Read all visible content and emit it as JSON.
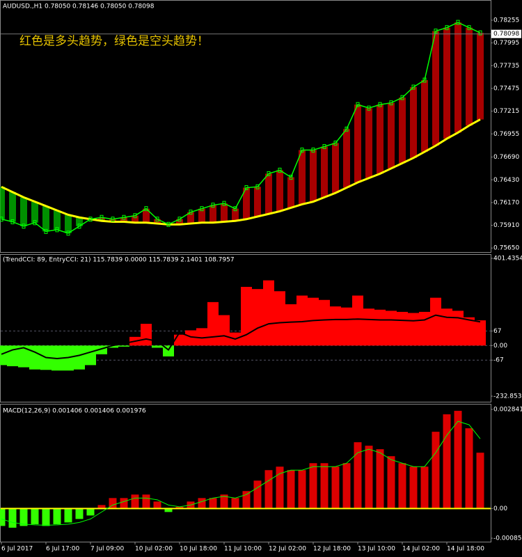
{
  "chart_data": [
    {
      "type": "line",
      "title": "AUDUSD.,H1  0.78050 0.78146 0.78050 0.78098",
      "annotation": "红色是多头趋势，绿色是空头趋势！",
      "categories": [
        "6 Jul 2017",
        null,
        null,
        null,
        "6 Jul 17:00",
        null,
        null,
        null,
        "7 Jul 09:00",
        null,
        null,
        null,
        "10 Jul 02:00",
        null,
        null,
        null,
        "10 Jul 18:00",
        null,
        null,
        null,
        "11 Jul 10:00",
        null,
        null,
        null,
        "12 Jul 02:00",
        null,
        null,
        null,
        "12 Jul 18:00",
        null,
        null,
        null,
        "13 Jul 10:00",
        null,
        null,
        null,
        "14 Jul 02:00",
        null,
        null,
        null,
        "14 Jul 18:00",
        null,
        null,
        null
      ],
      "series": [
        {
          "color": "#00ff00",
          "values": [
            0.7598,
            0.7595,
            0.759,
            0.7594,
            0.7584,
            0.7586,
            0.7582,
            0.759,
            0.7598,
            0.76,
            0.7598,
            0.76,
            0.7602,
            0.761,
            0.7598,
            0.7592,
            0.7598,
            0.7606,
            0.761,
            0.7614,
            0.7616,
            0.761,
            0.7634,
            0.7635,
            0.765,
            0.7654,
            0.7646,
            0.7677,
            0.7677,
            0.7681,
            0.7685,
            0.7701,
            0.7729,
            0.7725,
            0.7729,
            0.7731,
            0.7737,
            0.7749,
            0.7757,
            0.7813,
            0.7817,
            0.7823,
            0.7817,
            0.7811
          ]
        },
        {
          "color": "#ffff00",
          "values": [
            0.7635,
            0.7629,
            0.7623,
            0.7618,
            0.7613,
            0.7608,
            0.7603,
            0.76,
            0.7598,
            0.7596,
            0.7595,
            0.7595,
            0.7594,
            0.7594,
            0.7593,
            0.7592,
            0.7592,
            0.7593,
            0.7594,
            0.7594,
            0.7595,
            0.7596,
            0.7598,
            0.7601,
            0.7604,
            0.7607,
            0.7611,
            0.7615,
            0.7618,
            0.7623,
            0.7628,
            0.7634,
            0.764,
            0.7645,
            0.765,
            0.7656,
            0.7662,
            0.7668,
            0.7675,
            0.7682,
            0.769,
            0.7697,
            0.7705,
            0.7712
          ]
        }
      ],
      "up_color": "#e00000",
      "down_color": "#00c000",
      "last_price": 0.78098,
      "ylim": [
        0.7562,
        0.7847
      ],
      "yticks": [
        {
          "value": 0.78255,
          "label": "0.78255"
        },
        {
          "value": 0.77995,
          "label": "0.77995"
        },
        {
          "value": 0.77735,
          "label": "0.77735"
        },
        {
          "value": 0.77475,
          "label": "0.77475"
        },
        {
          "value": 0.77215,
          "label": "0.77215"
        },
        {
          "value": 0.76955,
          "label": "0.76955"
        },
        {
          "value": 0.7669,
          "label": "0.76690"
        },
        {
          "value": 0.7643,
          "label": "0.76430"
        },
        {
          "value": 0.7617,
          "label": "0.76170"
        },
        {
          "value": 0.7591,
          "label": "0.75910"
        },
        {
          "value": 0.7565,
          "label": "0.75650"
        }
      ]
    },
    {
      "type": "histogram",
      "title": "(TrendCCI: 89, EntryCCI: 21) 115.7839 0.0000 115.7839 2.1401 108.7957",
      "values": [
        -90,
        -95,
        -100,
        -110,
        -112,
        -115,
        -115,
        -110,
        -90,
        -40,
        -10,
        -5,
        40,
        100,
        -10,
        -50,
        50,
        70,
        80,
        200,
        140,
        60,
        270,
        260,
        300,
        250,
        190,
        230,
        220,
        210,
        180,
        175,
        230,
        170,
        165,
        160,
        155,
        150,
        155,
        220,
        170,
        160,
        130,
        116
      ],
      "up_color": "#ff0000",
      "down_color": "#33ff00",
      "line": {
        "color": "#000000",
        "values": [
          -40,
          -20,
          -10,
          -30,
          -55,
          -60,
          -55,
          -45,
          -30,
          -15,
          0,
          10,
          20,
          30,
          20,
          -20,
          60,
          40,
          35,
          40,
          45,
          30,
          50,
          80,
          100,
          105,
          108,
          110,
          115,
          118,
          120,
          120,
          122,
          120,
          118,
          118,
          116,
          114,
          118,
          140,
          130,
          128,
          118,
          109
        ]
      },
      "grid": "dashed",
      "ylim": [
        -232.8539,
        401.4354
      ],
      "yticks": [
        401.4354,
        67,
        {
          "value": 0,
          "label": "0.00"
        },
        -67,
        -232.8539
      ]
    },
    {
      "type": "histogram",
      "title": "MACD(12,26,9) 0.001406 0.001406 0.001976",
      "values": [
        -0.0005,
        -0.00055,
        -0.0005,
        -0.00045,
        -0.0005,
        -0.00045,
        -0.0004,
        -0.0003,
        -0.0002,
        0.0001,
        0.0003,
        0.0003,
        0.0004,
        0.0004,
        0.0002,
        -0.0001,
        5e-05,
        0.0002,
        0.0003,
        0.0003,
        0.0004,
        0.0003,
        0.0005,
        0.0008,
        0.0011,
        0.0012,
        0.0011,
        0.0011,
        0.0013,
        0.0013,
        0.0012,
        0.0013,
        0.0019,
        0.0018,
        0.0017,
        0.0015,
        0.0013,
        0.0012,
        0.0012,
        0.0022,
        0.0027,
        0.0028,
        0.0023,
        0.0016
      ],
      "up_color": "#dd0000",
      "down_color": "#33ff00",
      "line": {
        "color": "#00ff00",
        "values": [
          -0.0003,
          -0.0004,
          -0.00045,
          -0.00047,
          -0.00048,
          -0.00047,
          -0.00045,
          -0.0004,
          -0.0003,
          -0.0001,
          0.0001,
          0.0002,
          0.0003,
          0.0003,
          0.00025,
          0.0001,
          5e-05,
          0.0001,
          0.0002,
          0.0003,
          0.00035,
          0.0003,
          0.0004,
          0.0006,
          0.0008,
          0.001,
          0.0011,
          0.0011,
          0.0012,
          0.0012,
          0.0012,
          0.0013,
          0.0016,
          0.0017,
          0.0016,
          0.0014,
          0.0013,
          0.0012,
          0.0012,
          0.0016,
          0.0021,
          0.0025,
          0.0024,
          0.002
        ]
      },
      "zero_line_color": "#ffff00",
      "ylim": [
        -0.000851,
        0.002841
      ],
      "yticks": [
        0.002841,
        {
          "value": 0,
          "label": "0.00"
        },
        -0.000851
      ]
    }
  ]
}
